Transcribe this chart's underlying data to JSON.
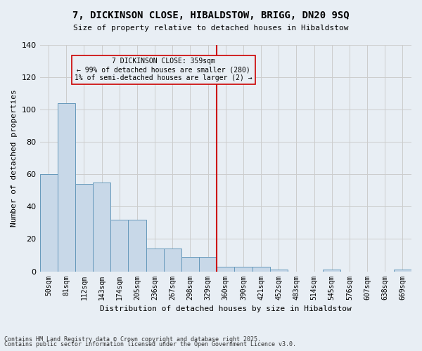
{
  "title1": "7, DICKINSON CLOSE, HIBALDSTOW, BRIGG, DN20 9SQ",
  "title2": "Size of property relative to detached houses in Hibaldstow",
  "xlabel": "Distribution of detached houses by size in Hibaldstow",
  "ylabel": "Number of detached properties",
  "bar_color": "#c8d8e8",
  "bar_edge_color": "#6699bb",
  "grid_color": "#cccccc",
  "bg_color": "#e8eef4",
  "vline_color": "#cc0000",
  "vline_x": 9,
  "annotation_text": "7 DICKINSON CLOSE: 359sqm\n← 99% of detached houses are smaller (280)\n1% of semi-detached houses are larger (2) →",
  "annotation_box_color": "#cc0000",
  "categories": [
    "50sqm",
    "81sqm",
    "112sqm",
    "143sqm",
    "174sqm",
    "205sqm",
    "236sqm",
    "267sqm",
    "298sqm",
    "329sqm",
    "360sqm",
    "390sqm",
    "421sqm",
    "452sqm",
    "483sqm",
    "514sqm",
    "545sqm",
    "576sqm",
    "607sqm",
    "638sqm",
    "669sqm"
  ],
  "values": [
    60,
    104,
    54,
    55,
    32,
    32,
    14,
    14,
    9,
    9,
    3,
    3,
    3,
    1,
    0,
    0,
    1,
    0,
    0,
    0,
    1
  ],
  "footnote1": "Contains HM Land Registry data © Crown copyright and database right 2025.",
  "footnote2": "Contains public sector information licensed under the Open Government Licence v3.0.",
  "ylim": [
    0,
    140
  ],
  "yticks": [
    0,
    20,
    40,
    60,
    80,
    100,
    120,
    140
  ]
}
